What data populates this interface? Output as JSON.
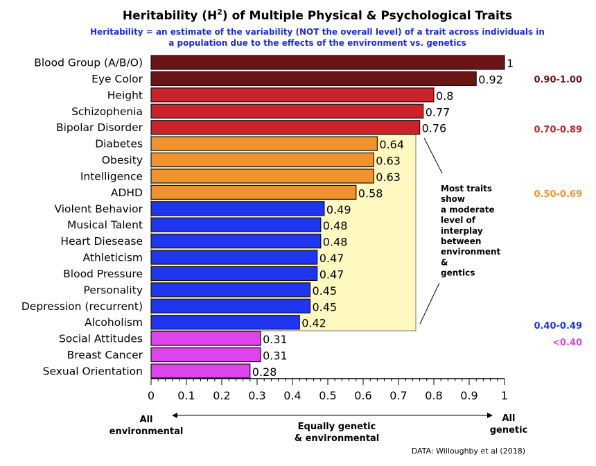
{
  "chart_data": {
    "type": "bar",
    "orientation": "horizontal",
    "title_main": "Heritability (H",
    "title_sup": "2",
    "title_rest": ") of Multiple Physical & Psychological Traits",
    "subtitle": [
      "Heritability = an estimate of the variability (NOT the overall level) of a trait across individuals in",
      "a population due to the effects of the environment vs. genetics"
    ],
    "categories": [
      "Blood Group (A/B/O)",
      "Eye Color",
      "Height",
      "Schizophenia",
      "Bipolar Disorder",
      "Diabetes",
      "Obesity",
      "Intelligence",
      "ADHD",
      "Violent Behavior",
      "Musical Talent",
      "Heart Diesease",
      "Athleticism",
      "Blood Pressure",
      "Personality",
      "Depression (recurrent)",
      "Alcoholism",
      "Social Attitudes",
      "Breast Cancer",
      "Sexual Orientation"
    ],
    "values": [
      1,
      0.92,
      0.8,
      0.77,
      0.76,
      0.64,
      0.63,
      0.63,
      0.58,
      0.49,
      0.48,
      0.48,
      0.47,
      0.47,
      0.45,
      0.45,
      0.42,
      0.31,
      0.31,
      0.28
    ],
    "value_labels": [
      "1",
      "0.92",
      "0.8",
      "0.77",
      "0.76",
      "0.64",
      "0.63",
      "0.63",
      "0.58",
      "0.49",
      "0.48",
      "0.48",
      "0.47",
      "0.47",
      "0.45",
      "0.45",
      "0.42",
      "0.31",
      "0.31",
      "0.28"
    ],
    "xlim": [
      0,
      1
    ],
    "xticks": [
      "0",
      "0.1",
      "0.2",
      "0.3",
      "0.4",
      "0.5",
      "0.6",
      "0.7",
      "0.8",
      "0.9",
      "1"
    ],
    "legend": [
      {
        "label": "0.90-1.00",
        "color": "#6b1416",
        "min": 0.9
      },
      {
        "label": "0.70-0.89",
        "color": "#cc2229",
        "min": 0.7
      },
      {
        "label": "0.50-0.69",
        "color": "#f0922e",
        "min": 0.5
      },
      {
        "label": "0.40-0.49",
        "color": "#1f35f0",
        "min": 0.4
      },
      {
        "label": "<0.40",
        "color": "#dd44ee",
        "min": 0
      }
    ],
    "annotation": [
      "Most traits",
      "show",
      "a moderate",
      "level of",
      "interplay",
      "between",
      "environment",
      "&",
      "gentics"
    ],
    "axis_left": [
      "All",
      "environmental"
    ],
    "axis_middle": [
      "Equally genetic",
      "& environmental"
    ],
    "axis_right": [
      "All",
      "genetic"
    ],
    "source": "DATA: Willoughby et al (2018)"
  }
}
